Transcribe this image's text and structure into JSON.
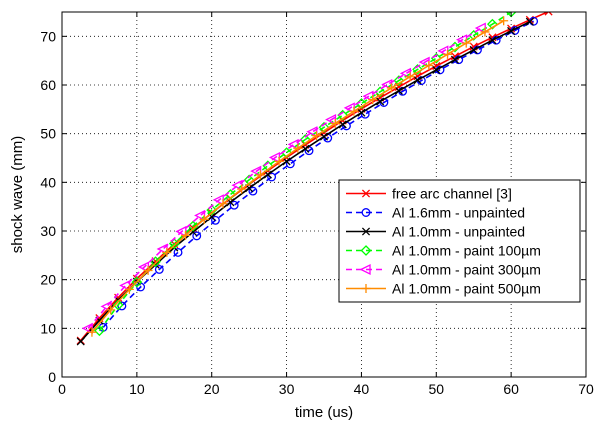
{
  "chart_data": {
    "type": "line",
    "xlabel": "time (us)",
    "ylabel": "shock wave (mm)",
    "xlim": [
      0,
      70
    ],
    "ylim": [
      0,
      75
    ],
    "x_ticks": [
      "0",
      "10",
      "20",
      "30",
      "40",
      "50",
      "60",
      "70"
    ],
    "y_ticks": [
      "0",
      "10",
      "20",
      "30",
      "40",
      "50",
      "60",
      "70"
    ],
    "grid": true,
    "legend_position": "lower-right",
    "series": [
      {
        "name": "free arc channel [3]",
        "color": "#ff0000",
        "line_style": "solid",
        "marker": "x",
        "x": [
          2.5,
          5,
          7.5,
          10,
          12.5,
          15,
          17.5,
          20,
          22.5,
          25,
          27.5,
          30,
          32.5,
          35,
          37.5,
          40,
          42.5,
          45,
          47.5,
          50,
          52.5,
          55,
          57.5,
          60,
          62.5,
          65,
          67.5,
          70
        ],
        "y": [
          7.5,
          12.1,
          16.3,
          20.2,
          23.8,
          27.3,
          30.6,
          33.7,
          36.7,
          39.6,
          42.4,
          45.1,
          47.7,
          50.2,
          52.7,
          55.1,
          57.4,
          59.6,
          61.8,
          63.9,
          65.9,
          67.9,
          69.8,
          71.6,
          73.4,
          75.1,
          76.7,
          78.3
        ]
      },
      {
        "name": "Al 1.6mm - unpainted",
        "color": "#0000ff",
        "line_style": "dashed",
        "marker": "circle",
        "x": [
          5.5,
          8,
          10.5,
          13,
          15.5,
          18,
          20.5,
          23,
          25.5,
          28,
          30.5,
          33,
          35.5,
          38,
          40.5,
          43,
          45.5,
          48,
          50.5,
          53,
          55.5,
          58,
          60.5,
          63
        ],
        "y": [
          10.2,
          14.6,
          18.5,
          22.1,
          25.6,
          29.0,
          32.2,
          35.3,
          38.2,
          41.1,
          43.8,
          46.5,
          49.1,
          51.6,
          54.0,
          56.4,
          58.7,
          60.9,
          63.1,
          65.2,
          67.2,
          69.2,
          71.2,
          73.1
        ]
      },
      {
        "name": "Al 1.0mm - unpainted",
        "color": "#000000",
        "line_style": "solid",
        "marker": "x",
        "x": [
          2.5,
          5,
          7.5,
          10,
          12.5,
          15,
          17.5,
          20,
          22.5,
          25,
          27.5,
          30,
          32.5,
          35,
          37.5,
          40,
          42.5,
          45,
          47.5,
          50,
          52.5,
          55,
          57.5,
          60,
          62.5
        ],
        "y": [
          7.3,
          11.6,
          15.8,
          19.6,
          23.1,
          26.6,
          29.8,
          32.9,
          35.9,
          38.8,
          41.6,
          44.3,
          46.9,
          49.4,
          51.9,
          54.3,
          56.6,
          58.8,
          61.0,
          63.1,
          65.2,
          67.2,
          69.2,
          71.1,
          73.0
        ]
      },
      {
        "name": "Al 1.0mm - paint 100µm",
        "color": "#00ff00",
        "line_style": "dashed",
        "marker": "diamond",
        "x": [
          5,
          7.5,
          10,
          12.5,
          15,
          17.5,
          20,
          22.5,
          25,
          27.5,
          30,
          32.5,
          35,
          37.5,
          40,
          42.5,
          45,
          47.5,
          50,
          52.5,
          55,
          57.5,
          60
        ],
        "y": [
          9.5,
          14.8,
          19.5,
          23.7,
          27.4,
          31.0,
          34.3,
          37.5,
          40.5,
          43.4,
          46.1,
          48.8,
          51.3,
          53.8,
          56.2,
          58.6,
          60.9,
          63.2,
          65.5,
          67.8,
          70.2,
          72.5,
          75.0
        ]
      },
      {
        "name": "Al 1.0mm - paint 300µm",
        "color": "#ff00ff",
        "line_style": "dashed",
        "marker": "triangle-left",
        "x": [
          3.5,
          6,
          8.5,
          11,
          13.5,
          16,
          18.5,
          21,
          23.5,
          26,
          28.5,
          31,
          33.5,
          36,
          38.5,
          41,
          43.5,
          46,
          48.5,
          51,
          53.5,
          56
        ],
        "y": [
          10.0,
          14.5,
          18.8,
          22.6,
          26.3,
          29.9,
          33.2,
          36.4,
          39.4,
          42.3,
          45.1,
          47.8,
          50.4,
          52.9,
          55.3,
          57.7,
          60.1,
          62.4,
          64.7,
          67.0,
          69.3,
          71.7
        ]
      },
      {
        "name": "Al 1.0mm - paint 500µm",
        "color": "#ff8c00",
        "line_style": "solid",
        "marker": "plus",
        "x": [
          4,
          6.5,
          9,
          11.5,
          14,
          16.5,
          19,
          21.5,
          24,
          26.5,
          29,
          31.5,
          34,
          36.5,
          39,
          41.5,
          44,
          46.5,
          49,
          51.5,
          54,
          56.5,
          59
        ],
        "y": [
          9.2,
          13.8,
          18.0,
          21.9,
          25.6,
          29.1,
          32.4,
          35.6,
          38.6,
          41.5,
          44.3,
          47.0,
          49.6,
          52.1,
          54.6,
          57.0,
          59.4,
          61.7,
          64.0,
          66.3,
          68.6,
          70.9,
          73.2
        ]
      }
    ]
  }
}
